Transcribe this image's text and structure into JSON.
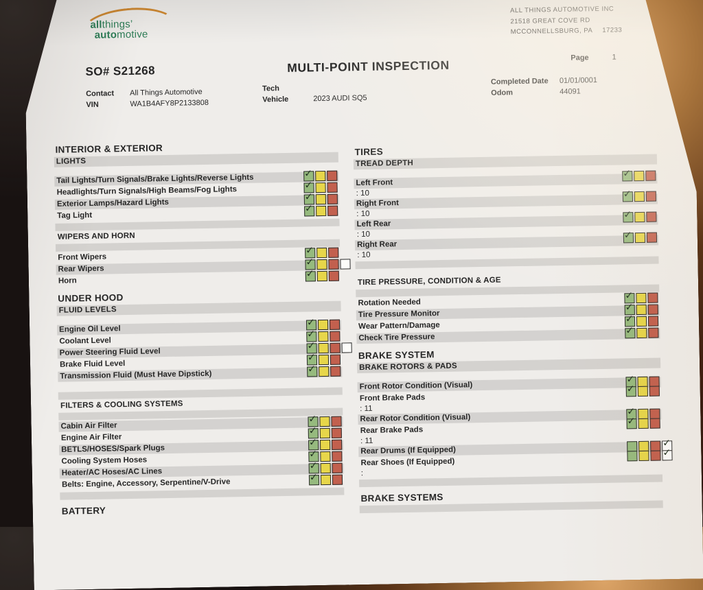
{
  "logo": {
    "l1a": "all",
    "l1b": "things’",
    "l2a": "auto",
    "l2b": "motive"
  },
  "company": {
    "name": "ALL THINGS AUTOMOTIVE INC",
    "street": "21518 GREAT COVE RD",
    "city": "MCCONNELLSBURG, PA",
    "zip": "17233"
  },
  "header": {
    "so": "SO# S21268",
    "title": "MULTI-POINT INSPECTION",
    "page_label": "Page",
    "page_num": "1"
  },
  "meta": {
    "contact_label": "Contact",
    "contact": "All Things Automotive",
    "vin_label": "VIN",
    "vin": "WA1B4AFY8P2133808",
    "tech_label": "Tech",
    "tech": "",
    "vehicle_label": "Vehicle",
    "vehicle": "2023 AUDI SQ5",
    "completed_label": "Completed Date",
    "completed": "01/01/0001",
    "odom_label": "Odom",
    "odom": "44091"
  },
  "icons": {
    "check": "✓"
  },
  "colors": {
    "green": "#96ba7e",
    "yellow": "#e7d64a",
    "red": "#c2604e",
    "na": "#fcfcfa",
    "check": "#20301f"
  },
  "columns": {
    "left": {
      "blocks": [
        {
          "k": "h1",
          "t": "INTERIOR & EXTERIOR"
        },
        {
          "k": "h2",
          "t": "LIGHTS",
          "shaded": true
        },
        {
          "k": "space"
        },
        {
          "k": "item",
          "label": "Tail Lights/Turn Signals/Brake Lights/Reverse Lights",
          "shaded": true,
          "state": "ok"
        },
        {
          "k": "item",
          "label": "Headlights/Turn Signals/High Beams/Fog Lights",
          "shaded": false,
          "state": "ok"
        },
        {
          "k": "item",
          "label": "Exterior Lamps/Hazard Lights",
          "shaded": true,
          "state": "ok"
        },
        {
          "k": "item",
          "label": "Tag Light",
          "shaded": false,
          "state": "ok"
        },
        {
          "k": "bar"
        },
        {
          "k": "h2",
          "t": "WIPERS AND HORN",
          "shaded": false
        },
        {
          "k": "bar"
        },
        {
          "k": "item",
          "label": "Front Wipers",
          "shaded": false,
          "state": "ok"
        },
        {
          "k": "item",
          "label": "Rear Wipers",
          "shaded": true,
          "state": "ok",
          "na_box": true
        },
        {
          "k": "item",
          "label": "Horn",
          "shaded": false,
          "state": "ok"
        },
        {
          "k": "h1",
          "t": "UNDER HOOD"
        },
        {
          "k": "h2",
          "t": "FLUID LEVELS",
          "shaded": true
        },
        {
          "k": "space"
        },
        {
          "k": "item",
          "label": "Engine Oil Level",
          "shaded": true,
          "state": "ok"
        },
        {
          "k": "item",
          "label": "Coolant Level",
          "shaded": false,
          "state": "ok"
        },
        {
          "k": "item",
          "label": "Power Steering Fluid Level",
          "shaded": true,
          "state": "ok",
          "na_box": true
        },
        {
          "k": "item",
          "label": "Brake Fluid Level",
          "shaded": false,
          "state": "ok"
        },
        {
          "k": "item",
          "label": "Transmission Fluid (Must Have Dipstick)",
          "shaded": true,
          "state": "ok"
        },
        {
          "k": "space"
        },
        {
          "k": "bar"
        },
        {
          "k": "h2",
          "t": "FILTERS & COOLING SYSTEMS",
          "shaded": false
        },
        {
          "k": "bar"
        },
        {
          "k": "item",
          "label": "Cabin Air Filter",
          "shaded": true,
          "state": "ok"
        },
        {
          "k": "item",
          "label": "Engine Air Filter",
          "shaded": false,
          "state": "ok"
        },
        {
          "k": "item",
          "label": "BETLS/HOSES/Spark Plugs",
          "shaded": true,
          "state": "ok"
        },
        {
          "k": "item",
          "label": "Cooling System Hoses",
          "shaded": false,
          "state": "ok"
        },
        {
          "k": "item",
          "label": "Heater/AC Hoses/AC Lines",
          "shaded": true,
          "state": "ok"
        },
        {
          "k": "item",
          "label": "Belts: Engine, Accessory, Serpentine/V-Drive",
          "shaded": false,
          "state": "ok"
        },
        {
          "k": "bar"
        },
        {
          "k": "h1",
          "t": "BATTERY"
        }
      ]
    },
    "right": {
      "blocks": [
        {
          "k": "h1",
          "t": "TIRES"
        },
        {
          "k": "h2",
          "t": "TREAD DEPTH",
          "shaded": true
        },
        {
          "k": "space"
        },
        {
          "k": "item",
          "label": "Left Front",
          "shaded": true,
          "state": "ok",
          "value": ": 10"
        },
        {
          "k": "item",
          "label": "Right Front",
          "shaded": true,
          "state": "ok",
          "value": ": 10"
        },
        {
          "k": "item",
          "label": "Left Rear",
          "shaded": true,
          "state": "ok",
          "value": ": 10"
        },
        {
          "k": "item",
          "label": "Right Rear",
          "shaded": true,
          "state": "ok",
          "value": ": 10"
        },
        {
          "k": "bar"
        },
        {
          "k": "space"
        },
        {
          "k": "h2",
          "t": "TIRE PRESSURE, CONDITION & AGE",
          "shaded": false
        },
        {
          "k": "bar"
        },
        {
          "k": "item",
          "label": "Rotation Needed",
          "shaded": false,
          "state": "ok"
        },
        {
          "k": "item",
          "label": "Tire Pressure Monitor",
          "shaded": true,
          "state": "ok"
        },
        {
          "k": "item",
          "label": "Wear Pattern/Damage",
          "shaded": false,
          "state": "ok"
        },
        {
          "k": "item",
          "label": "Check Tire Pressure",
          "shaded": true,
          "state": "ok"
        },
        {
          "k": "h1",
          "t": "BRAKE SYSTEM"
        },
        {
          "k": "h2",
          "t": "BRAKE ROTORS & PADS",
          "shaded": true
        },
        {
          "k": "space"
        },
        {
          "k": "item",
          "label": "Front Rotor Condition (Visual)",
          "shaded": true,
          "state": "ok"
        },
        {
          "k": "item",
          "label": "Front Brake Pads",
          "shaded": false,
          "state": "ok",
          "value": ": 11"
        },
        {
          "k": "item",
          "label": "Rear Rotor Condition (Visual)",
          "shaded": true,
          "state": "ok"
        },
        {
          "k": "item",
          "label": "Rear Brake Pads",
          "shaded": false,
          "state": "ok",
          "value": ": 11"
        },
        {
          "k": "item",
          "label": "Rear Drums (If Equipped)",
          "shaded": true,
          "state": "na"
        },
        {
          "k": "item",
          "label": "Rear Shoes (If Equipped)",
          "shaded": false,
          "state": "na",
          "value": ":"
        },
        {
          "k": "bar"
        },
        {
          "k": "h1",
          "t": "BRAKE SYSTEMS"
        },
        {
          "k": "bar"
        }
      ]
    }
  }
}
